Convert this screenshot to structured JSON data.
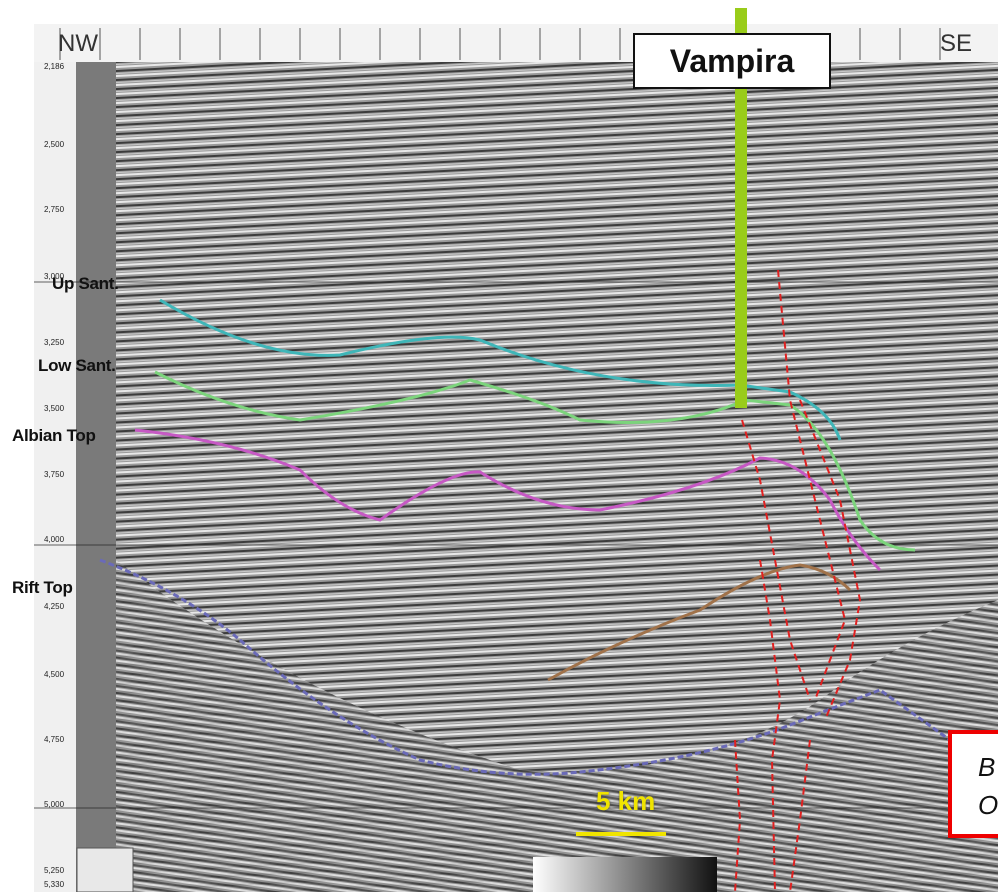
{
  "well": {
    "name": "Vampira"
  },
  "orientation": {
    "left": "NW",
    "right": "SE"
  },
  "horizons": [
    {
      "label": "Up Sant.",
      "color": "#3fb6b8"
    },
    {
      "label": "Low Sant.",
      "color": "#7cd47c"
    },
    {
      "label": "Albian Top",
      "color": "#c659c4"
    },
    {
      "label": "Rift Top",
      "color": "#6a6ab8"
    }
  ],
  "depth_axis": [
    "2,186",
    "2,500",
    "2,750",
    "3,000",
    "3,250",
    "3,500",
    "3,750",
    "4,000",
    "4,250",
    "4,500",
    "4,750",
    "5,000",
    "5,250",
    "5,330"
  ],
  "scale_bar": {
    "label": "5 km",
    "color": "#f0e400"
  },
  "legend_box": {
    "line1": "B",
    "line2": "O",
    "border_color": "#e00000"
  },
  "fault_color": "#e02020",
  "well_color": "#99cc1a"
}
